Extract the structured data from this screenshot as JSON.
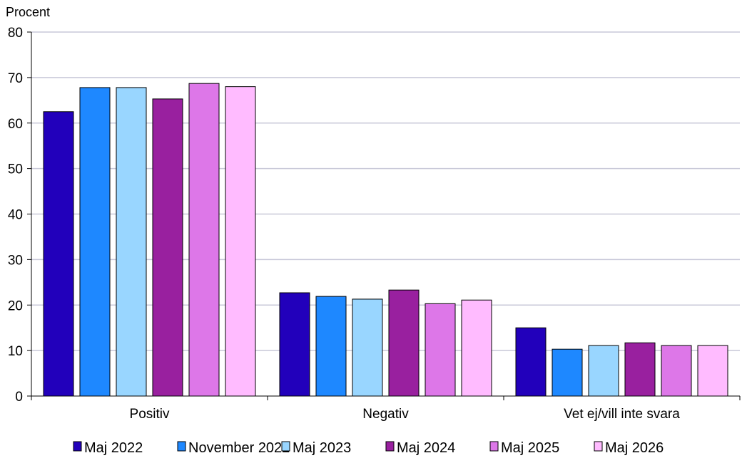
{
  "chart_data": {
    "type": "bar",
    "ylabel": "Procent",
    "xlabel": "",
    "ylim": [
      0,
      80
    ],
    "yticks": [
      0,
      10,
      20,
      30,
      40,
      50,
      60,
      70,
      80
    ],
    "grid": true,
    "legend_position": "bottom",
    "categories": [
      "Positiv",
      "Negativ",
      "Vet ej/vill inte svara"
    ],
    "series": [
      {
        "name": "Maj 2022",
        "color": "#2200BB",
        "values": [
          62.5,
          22.7,
          15.0
        ]
      },
      {
        "name": "November 2022",
        "color": "#1E88FF",
        "values": [
          67.8,
          21.9,
          10.3
        ]
      },
      {
        "name": "Maj 2023",
        "color": "#99D6FF",
        "values": [
          67.8,
          21.3,
          11.1
        ]
      },
      {
        "name": "Maj 2024",
        "color": "#99209F",
        "values": [
          65.3,
          23.3,
          11.7
        ]
      },
      {
        "name": "Maj 2025",
        "color": "#DD77E8",
        "values": [
          68.7,
          20.3,
          11.1
        ]
      },
      {
        "name": "Maj 2026",
        "color": "#FFBBFF",
        "values": [
          68.0,
          21.1,
          11.1
        ]
      }
    ]
  }
}
